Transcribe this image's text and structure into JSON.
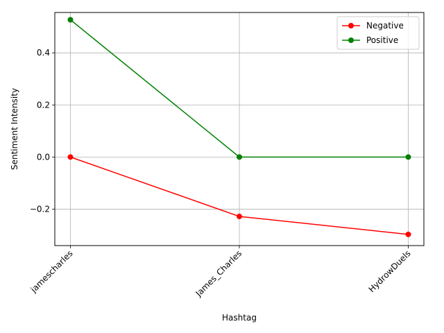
{
  "chart_data": {
    "type": "line",
    "title": "",
    "xlabel": "Hashtag",
    "ylabel": "Sentiment Intensity",
    "categories": [
      "jamescharles",
      "James_Charles",
      "HydrowDuels"
    ],
    "ylim": [
      -0.34,
      0.555
    ],
    "yticks": [
      -0.2,
      0.0,
      0.2,
      0.4
    ],
    "ytick_labels": [
      "−0.2",
      "0.0",
      "0.2",
      "0.4"
    ],
    "grid": true,
    "legend_position": "top-right",
    "series": [
      {
        "name": "Negative",
        "color": "#ff0000",
        "values": [
          0.0,
          -0.228,
          -0.297
        ]
      },
      {
        "name": "Positive",
        "color": "#008000",
        "values": [
          0.527,
          0.0,
          0.0
        ]
      }
    ]
  }
}
